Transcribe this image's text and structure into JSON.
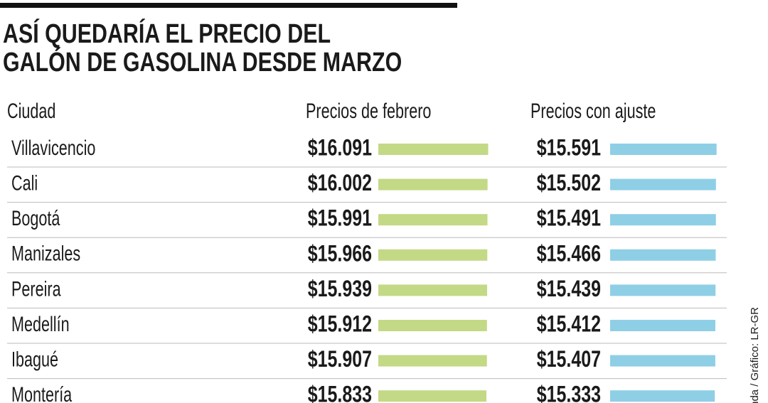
{
  "chart_data": {
    "type": "table-bar",
    "title_lines": [
      "ASÍ QUEDARÍA EL PRECIO DEL",
      "GALÓN DE GASOLINA DESDE MARZO"
    ],
    "columns": [
      "Ciudad",
      "Precios de febrero",
      "Precios con ajuste"
    ],
    "categories": [
      "Villavicencio",
      "Cali",
      "Bogotá",
      "Manizales",
      "Pereira",
      "Medellín",
      "Ibagué",
      "Montería"
    ],
    "series": [
      {
        "name": "Precios de febrero",
        "color": "#c3d985",
        "values": [
          16091,
          16002,
          15991,
          15966,
          15939,
          15912,
          15907,
          15833
        ],
        "value_labels": [
          "$16.091",
          "$16.002",
          "$15.991",
          "$15.966",
          "$15.939",
          "$15.912",
          "$15.907",
          "$15.833"
        ]
      },
      {
        "name": "Precios con ajuste",
        "color": "#8ecfe6",
        "values": [
          15591,
          15502,
          15491,
          15466,
          15439,
          15412,
          15407,
          15333
        ],
        "value_labels": [
          "$15.591",
          "$15.502",
          "$15.491",
          "$15.466",
          "$15.439",
          "$15.412",
          "$15.407",
          "$15.333"
        ]
      }
    ],
    "source": "nda / Gráfico: LR-GR"
  }
}
